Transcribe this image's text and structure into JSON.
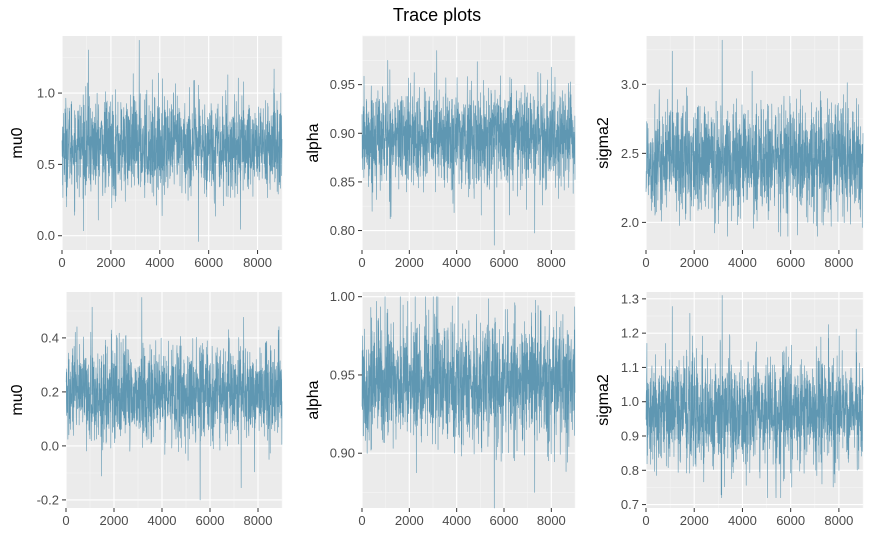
{
  "figure": {
    "title": "Trace plots"
  },
  "colors": {
    "trace": "#5f97b2",
    "panel": "#ebebeb",
    "grid_major": "#ffffff",
    "grid_minor": "#f5f5f5",
    "tick": "#4d4d4d"
  },
  "chart_data": [
    {
      "type": "line",
      "ylabel": "mu0",
      "grid": true,
      "xlim": [
        0,
        9000
      ],
      "ylim": [
        -0.1,
        1.4
      ],
      "xticks": [
        0,
        2000,
        4000,
        6000,
        8000
      ],
      "yticks": [
        0.0,
        0.5,
        1.0
      ],
      "xtick_labels": [
        "0",
        "2000",
        "4000",
        "6000",
        "8000"
      ],
      "ytick_labels": [
        "0.0",
        "0.5",
        "1.0"
      ],
      "series": [
        {
          "x_range": [
            1,
            9000
          ],
          "mean": 0.63,
          "sd": 0.17,
          "min": -0.04,
          "max": 1.37
        }
      ]
    },
    {
      "type": "line",
      "ylabel": "alpha",
      "grid": true,
      "xlim": [
        0,
        9000
      ],
      "ylim": [
        0.78,
        1.0
      ],
      "xticks": [
        0,
        2000,
        4000,
        6000,
        8000
      ],
      "yticks": [
        0.8,
        0.85,
        0.9,
        0.95
      ],
      "xtick_labels": [
        "0",
        "2000",
        "4000",
        "6000",
        "8000"
      ],
      "ytick_labels": [
        "0.80",
        "0.85",
        "0.90",
        "0.95"
      ],
      "series": [
        {
          "x_range": [
            1,
            9000
          ],
          "mean": 0.895,
          "sd": 0.025,
          "min": 0.785,
          "max": 0.985
        }
      ]
    },
    {
      "type": "line",
      "ylabel": "sigma2",
      "grid": true,
      "xlim": [
        0,
        9000
      ],
      "ylim": [
        1.8,
        3.35
      ],
      "xticks": [
        0,
        2000,
        4000,
        6000,
        8000
      ],
      "yticks": [
        2.0,
        2.5,
        3.0
      ],
      "xtick_labels": [
        "0",
        "2000",
        "4000",
        "6000",
        "8000"
      ],
      "ytick_labels": [
        "2.0",
        "2.5",
        "3.0"
      ],
      "series": [
        {
          "x_range": [
            1,
            9000
          ],
          "mean": 2.45,
          "sd": 0.2,
          "min": 1.9,
          "max": 3.32
        }
      ]
    },
    {
      "type": "line",
      "ylabel": "mu0",
      "grid": true,
      "xlim": [
        0,
        9000
      ],
      "ylim": [
        -0.23,
        0.57
      ],
      "xticks": [
        0,
        2000,
        4000,
        6000,
        8000
      ],
      "yticks": [
        -0.2,
        0.0,
        0.2,
        0.4
      ],
      "xtick_labels": [
        "0",
        "2000",
        "4000",
        "6000",
        "8000"
      ],
      "ytick_labels": [
        "-0.2",
        "0.0",
        "0.2",
        "0.4"
      ],
      "series": [
        {
          "x_range": [
            1,
            9000
          ],
          "mean": 0.19,
          "sd": 0.09,
          "min": -0.2,
          "max": 0.55
        }
      ]
    },
    {
      "type": "line",
      "ylabel": "alpha",
      "grid": true,
      "xlim": [
        0,
        9000
      ],
      "ylim": [
        0.865,
        1.003
      ],
      "xticks": [
        0,
        2000,
        4000,
        6000,
        8000
      ],
      "yticks": [
        0.9,
        0.95,
        1.0
      ],
      "xtick_labels": [
        "0",
        "2000",
        "4000",
        "6000",
        "8000"
      ],
      "ytick_labels": [
        "0.90",
        "0.95",
        "1.00"
      ],
      "series": [
        {
          "x_range": [
            1,
            9000
          ],
          "mean": 0.945,
          "sd": 0.02,
          "min": 0.865,
          "max": 1.0
        }
      ]
    },
    {
      "type": "line",
      "ylabel": "sigma2",
      "grid": true,
      "xlim": [
        0,
        9000
      ],
      "ylim": [
        0.69,
        1.32
      ],
      "xticks": [
        0,
        2000,
        4000,
        6000,
        8000
      ],
      "yticks": [
        0.7,
        0.8,
        0.9,
        1.0,
        1.1,
        1.2,
        1.3
      ],
      "xtick_labels": [
        "0",
        "2000",
        "4000",
        "6000",
        "8000"
      ],
      "ytick_labels": [
        "0.7",
        "0.8",
        "0.9",
        "1.0",
        "1.1",
        "1.2",
        "1.3"
      ],
      "series": [
        {
          "x_range": [
            1,
            9000
          ],
          "mean": 0.97,
          "sd": 0.08,
          "min": 0.72,
          "max": 1.31
        }
      ]
    }
  ]
}
